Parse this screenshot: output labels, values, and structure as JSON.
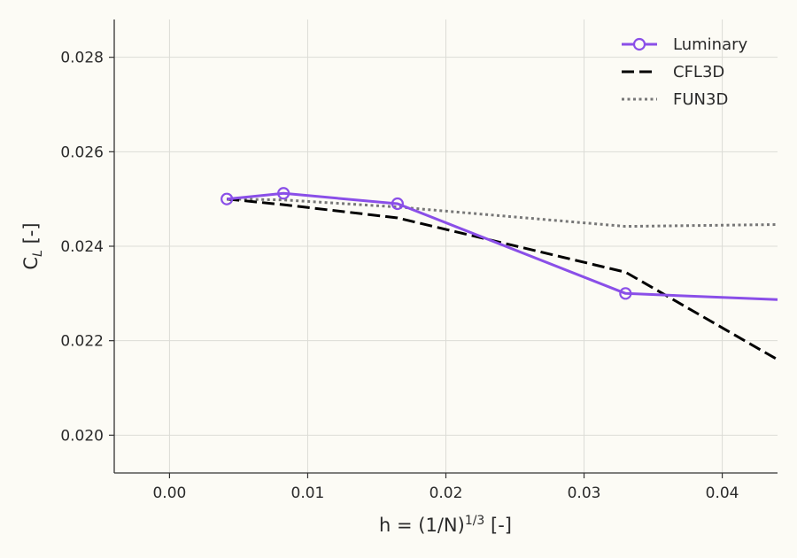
{
  "chart_data": {
    "type": "line",
    "xlabel": "h = (1/N)",
    "xlabel_sup": "1/3",
    "xlabel_suffix": " [-]",
    "ylabel": "C",
    "ylabel_sub": "L",
    "ylabel_suffix": " [-]",
    "xlim": [
      -0.004,
      0.044
    ],
    "ylim": [
      0.0192,
      0.0288
    ],
    "xticks": [
      0.0,
      0.01,
      0.02,
      0.03,
      0.04
    ],
    "xtick_labels": [
      "0.00",
      "0.01",
      "0.02",
      "0.03",
      "0.04"
    ],
    "yticks": [
      0.02,
      0.022,
      0.024,
      0.026,
      0.028
    ],
    "ytick_labels": [
      "0.020",
      "0.022",
      "0.024",
      "0.026",
      "0.028"
    ],
    "grid": true,
    "legend_position": "top-right",
    "series": [
      {
        "name": "Luminary",
        "color": "#8a4fe8",
        "style": "solid",
        "marker": "open-circle",
        "x": [
          0.00415,
          0.00825,
          0.0165,
          0.033,
          0.044
        ],
        "y": [
          0.025,
          0.02512,
          0.0249,
          0.023,
          0.02287
        ],
        "marker_count": 4
      },
      {
        "name": "CFL3D",
        "color": "#000000",
        "style": "dashed",
        "x": [
          0.00415,
          0.00825,
          0.0165,
          0.033,
          0.044
        ],
        "y": [
          0.025,
          0.02488,
          0.0246,
          0.02345,
          0.0216
        ]
      },
      {
        "name": "FUN3D",
        "color": "#777777",
        "style": "dotted",
        "x": [
          0.00415,
          0.00825,
          0.0165,
          0.033,
          0.044
        ],
        "y": [
          0.025,
          0.02498,
          0.02483,
          0.02442,
          0.02446
        ]
      }
    ]
  }
}
